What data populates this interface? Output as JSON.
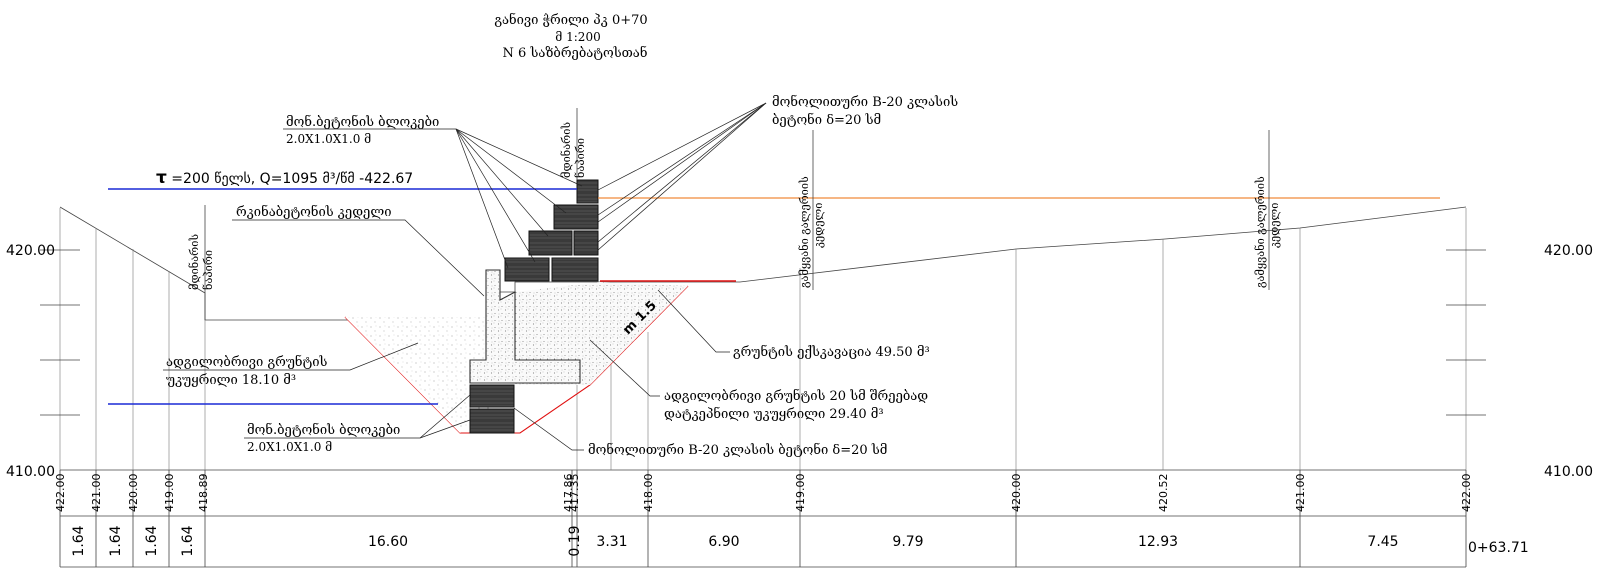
{
  "title": {
    "line1": "განივი ჭრილი  პკ 0+70",
    "line2": "მ 1:200",
    "line3": "N 6 საზბრებატოსთან"
  },
  "flood": {
    "tau": "τ",
    "text": " =200  წელს, Q=1095 მ³/წმ   -422.67"
  },
  "elevations": {
    "left_top": "420.00",
    "left_bottom": "410.00",
    "right_top": "420.00",
    "right_bottom": "410.00"
  },
  "labels": {
    "blocks_top_1": "მონ.ბეტონის ბლოკები",
    "blocks_top_2": "2.0X1.0X1.0  მ",
    "mono_top_1": "მონოლითური B-20 კლასის",
    "mono_top_2": "ბეტონი δ=20  სმ",
    "rc_wall": "რკინაბეტონის კედელი",
    "local_soil_1": "ადგილობრივი გრუნტის",
    "local_soil_2": "უკუყრილი 18.10  მ³",
    "blocks_bot_1": "მონ.ბეტონის ბლოკები",
    "blocks_bot_2": "2.0X1.0X1.0  მ",
    "excavation": "გრუნტის ექსკავაცია 49.50  მ³",
    "layered_1": "ადგილობრივი გრუნტის 20 სმ შრეებად",
    "layered_2": "დატკეპნილი უკუყრილი 29.40  მ³",
    "mono_bottom": "მონოლითური B-20 კლასის ბეტონი δ=20  სმ",
    "slope": "m 1.5",
    "vert_left_1": "მდინარის",
    "vert_left_2": "ნაპირი",
    "vert_mid_1": "მდინარის",
    "vert_mid_2": "ნაპირი",
    "vert_r1_1": "გამყვანი გალერიის",
    "vert_r1_2": "კედელი",
    "vert_r2_1": "გამყვანი გალერიის",
    "vert_r2_2": "კედელი"
  },
  "stations": {
    "ground_marks": [
      "422.00",
      "421.00",
      "420.00",
      "419.00",
      "418.89",
      "417.86",
      "417.35",
      "418.00",
      "419.00",
      "420.00",
      "420.52",
      "421.00",
      "422.00"
    ],
    "distances": [
      "1.64",
      "1.64",
      "1.64",
      "1.64",
      "16.60",
      "0.19",
      "3.31",
      "6.90",
      "9.79",
      "12.93",
      "7.45"
    ],
    "end_chainage": "0+63.71"
  },
  "colors": {
    "flood_line": "#1a2ad6",
    "red_line": "#e01010",
    "orange_line": "#f08a3a",
    "concrete": "#222222"
  }
}
